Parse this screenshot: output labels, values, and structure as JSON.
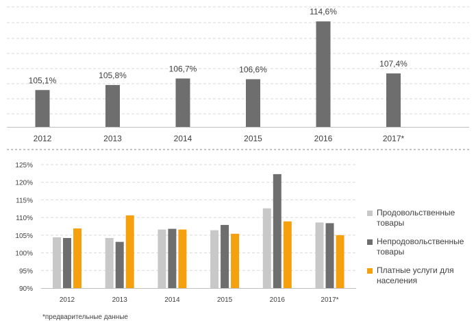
{
  "chart_data": [
    {
      "type": "bar",
      "title": "",
      "xlabel": "",
      "ylabel": "",
      "categories": [
        "2012",
        "2013",
        "2014",
        "2015",
        "2016",
        "2017*"
      ],
      "values": [
        105.1,
        105.8,
        106.7,
        106.6,
        114.6,
        107.4
      ],
      "value_labels": [
        "105,1%",
        "105,8%",
        "106,7%",
        "106,6%",
        "114,6%",
        "107,4%"
      ],
      "ylim": [
        100,
        115
      ],
      "grid": true,
      "bar_color": "#6e6e6e"
    },
    {
      "type": "bar",
      "title": "",
      "xlabel": "",
      "ylabel": "",
      "categories": [
        "2012",
        "2013",
        "2014",
        "2015",
        "2016",
        "2017*"
      ],
      "ylim": [
        90,
        125
      ],
      "yticks": [
        90,
        95,
        100,
        105,
        110,
        115,
        120,
        125
      ],
      "ytick_labels": [
        "90%",
        "95%",
        "100%",
        "105%",
        "110%",
        "115%",
        "120%",
        "125%"
      ],
      "grid": true,
      "legend_position": "right",
      "series": [
        {
          "name": "Продовольственные товары",
          "color": "#c8c8c8",
          "values": [
            104.4,
            104.2,
            106.6,
            106.4,
            112.6,
            108.6
          ]
        },
        {
          "name": "Непродовольственные товары",
          "color": "#6e6e6e",
          "values": [
            104.2,
            103.1,
            106.8,
            107.9,
            122.3,
            108.4
          ]
        },
        {
          "name": "Платные услуги для населения",
          "color": "#f5a00f",
          "values": [
            106.9,
            110.6,
            106.6,
            105.4,
            108.9,
            105.0
          ]
        }
      ]
    }
  ],
  "footnote": "*предварительные данные"
}
